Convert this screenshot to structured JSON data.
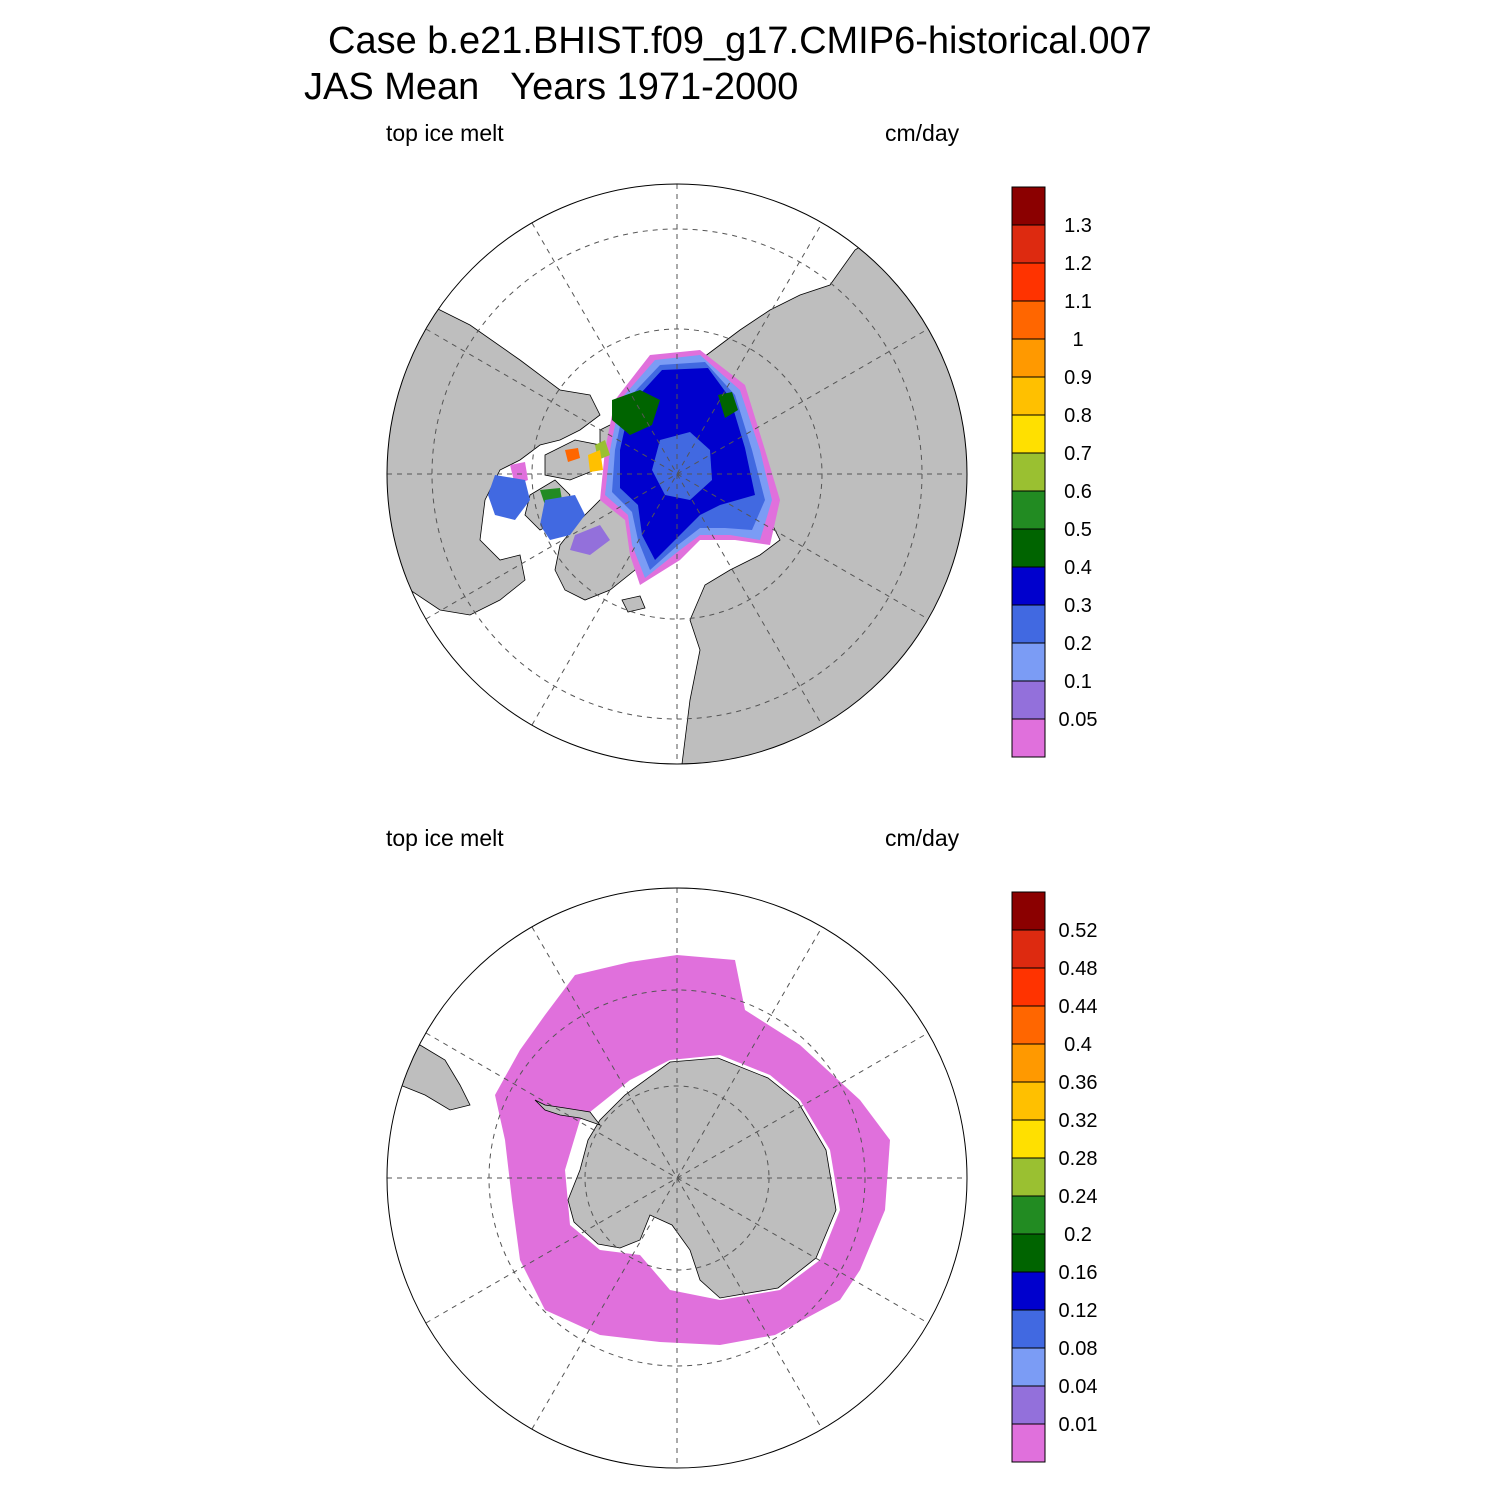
{
  "title": {
    "line1": "Case b.e21.BHIST.f09_g17.CMIP6-historical.007",
    "line2": "JAS Mean   Years 1971-2000"
  },
  "colors": {
    "land": "#bebebe",
    "ocean": "#ffffff",
    "grid": "#555555"
  },
  "panels": [
    {
      "id": "arctic",
      "hemisphere": "north",
      "variable_label": "top ice melt",
      "units_label": "cm/day",
      "colorbar": {
        "labels": [
          "0.05",
          "0.1",
          "0.2",
          "0.3",
          "0.4",
          "0.5",
          "0.6",
          "0.7",
          "0.8",
          "0.9",
          "1",
          "1.1",
          "1.2",
          "1.3"
        ],
        "colors": [
          "#e070dc",
          "#9370db",
          "#7b9cf5",
          "#4169e1",
          "#0000cd",
          "#006400",
          "#228b22",
          "#9ac031",
          "#ffe000",
          "#ffc000",
          "#ff9900",
          "#ff6600",
          "#ff3300",
          "#dd2a10",
          "#8b0000"
        ]
      }
    },
    {
      "id": "antarctic",
      "hemisphere": "south",
      "variable_label": "top ice melt",
      "units_label": "cm/day",
      "colorbar": {
        "labels": [
          "0.01",
          "0.04",
          "0.08",
          "0.12",
          "0.16",
          "0.2",
          "0.24",
          "0.28",
          "0.32",
          "0.36",
          "0.4",
          "0.44",
          "0.48",
          "0.52"
        ],
        "colors": [
          "#e070dc",
          "#9370db",
          "#7b9cf5",
          "#4169e1",
          "#0000cd",
          "#006400",
          "#228b22",
          "#9ac031",
          "#ffe000",
          "#ffc000",
          "#ff9900",
          "#ff6600",
          "#ff3300",
          "#dd2a10",
          "#8b0000"
        ]
      }
    }
  ]
}
